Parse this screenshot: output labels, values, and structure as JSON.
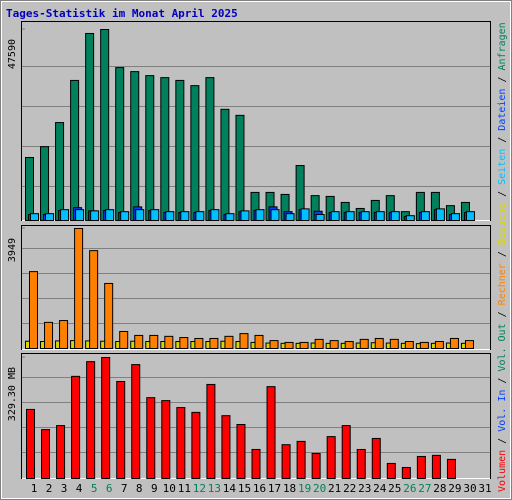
{
  "title": "Tages-Statistik im Monat April 2025",
  "legend": [
    {
      "name": "Volumen",
      "color": "#ff0000"
    },
    {
      "name": "Vol. In",
      "color": "#0040ff"
    },
    {
      "name": "Vol. Out",
      "color": "#00805c"
    },
    {
      "name": "Rechner",
      "color": "#ff8000"
    },
    {
      "name": "Besuche",
      "color": "#d8d800"
    },
    {
      "name": "Seiten",
      "color": "#00c0ff"
    },
    {
      "name": "Dateien",
      "color": "#0040ff"
    },
    {
      "name": "Anfragen",
      "color": "#00805c"
    }
  ],
  "legend_separator": "/",
  "chart_data": [
    {
      "type": "bar",
      "ylim": [
        0,
        47590
      ],
      "yticks": [
        47590
      ],
      "series": [
        {
          "color": "#00805c",
          "values": [
            15700,
            18400,
            24400,
            34900,
            46600,
            47590,
            38100,
            37100,
            36100,
            35600,
            34900,
            33600,
            35600,
            27700,
            26200,
            7000,
            7000,
            6500,
            13700,
            6200,
            6000,
            4500,
            3000,
            5000,
            6200,
            2200,
            7000,
            7000,
            3700,
            4500,
            null
          ]
        },
        {
          "color": "#0040ff",
          "values": [
            1500,
            1500,
            2500,
            3200,
            2400,
            2500,
            2000,
            3400,
            2500,
            2000,
            2000,
            2000,
            2500,
            1500,
            2200,
            2500,
            3400,
            2200,
            2700,
            2300,
            2000,
            2000,
            2000,
            2000,
            2000,
            1000,
            2000,
            2700,
            1500,
            2000,
            null
          ]
        },
        {
          "color": "#00c0ff",
          "values": [
            1700,
            1700,
            2700,
            2700,
            2400,
            2700,
            2200,
            2700,
            2700,
            2200,
            2200,
            2200,
            2700,
            1700,
            2400,
            2700,
            2700,
            1700,
            2900,
            1500,
            2200,
            2200,
            2200,
            2200,
            2200,
            1200,
            2200,
            2900,
            1700,
            2200,
            null
          ]
        }
      ]
    },
    {
      "type": "bar",
      "ylim": [
        0,
        3949
      ],
      "yticks": [
        3949
      ],
      "series": [
        {
          "color": "#d8d800",
          "values": [
            240,
            230,
            250,
            260,
            250,
            240,
            230,
            240,
            230,
            230,
            230,
            230,
            230,
            240,
            230,
            200,
            180,
            170,
            170,
            180,
            170,
            170,
            180,
            190,
            180,
            170,
            160,
            170,
            180,
            170,
            null
          ]
        },
        {
          "color": "#ff8000",
          "values": [
            2530,
            860,
            920,
            3949,
            3220,
            2140,
            560,
            430,
            430,
            400,
            360,
            330,
            330,
            400,
            490,
            430,
            260,
            200,
            200,
            300,
            260,
            230,
            300,
            330,
            300,
            230,
            200,
            230,
            330,
            260,
            null
          ]
        }
      ]
    },
    {
      "type": "bar",
      "ylim": [
        0,
        329.3
      ],
      "yticks": [
        {
          "value": 329.3,
          "label": "329.30 MB"
        }
      ],
      "categories": [
        "1",
        "2",
        "3",
        "4",
        "5",
        "6",
        "7",
        "8",
        "9",
        "10",
        "11",
        "12",
        "13",
        "14",
        "15",
        "16",
        "17",
        "18",
        "19",
        "20",
        "21",
        "22",
        "23",
        "24",
        "25",
        "26",
        "27",
        "28",
        "29",
        "30",
        "31"
      ],
      "category_colors": [
        "#000000",
        "#000000",
        "#000000",
        "#000000",
        "#00805c",
        "#00805c",
        "#000000",
        "#000000",
        "#000000",
        "#000000",
        "#000000",
        "#00805c",
        "#00805c",
        "#000000",
        "#000000",
        "#000000",
        "#000000",
        "#000000",
        "#00805c",
        "#00805c",
        "#000000",
        "#000000",
        "#000000",
        "#000000",
        "#000000",
        "#00805c",
        "#00805c",
        "#000000",
        "#000000",
        "#000000",
        "#000000"
      ],
      "series": [
        {
          "color": "#ff0000",
          "values": [
            188,
            133,
            144,
            278,
            318,
            329.3,
            264,
            310,
            220,
            212,
            193,
            180,
            256,
            171,
            147,
            79,
            250,
            92,
            101,
            68,
            114,
            144,
            79,
            109,
            41,
            30,
            60,
            63,
            52,
            null,
            null
          ]
        }
      ]
    }
  ]
}
